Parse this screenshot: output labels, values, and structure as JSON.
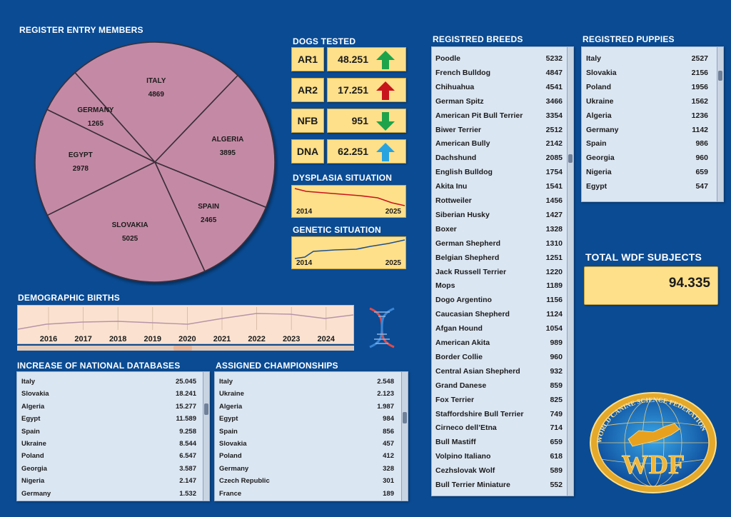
{
  "register_entry": {
    "title": "REGISTER ENTRY MEMBERS",
    "slices": [
      {
        "country": "ITALY",
        "value": "4869"
      },
      {
        "country": "ALGERIA",
        "value": "3895"
      },
      {
        "country": "SPAIN",
        "value": "2465"
      },
      {
        "country": "SLOVAKIA",
        "value": "5025"
      },
      {
        "country": "EGYPT",
        "value": "2978"
      },
      {
        "country": "GERMANY",
        "value": "1265"
      }
    ],
    "color": "#c48aa5"
  },
  "dogs_tested": {
    "title": "DOGS TESTED",
    "items": [
      {
        "label": "AR1",
        "value": "48.251",
        "trend": "up",
        "arrow_color": "#1fa34a",
        "icon": "arrow-up-green"
      },
      {
        "label": "AR2",
        "value": "17.251",
        "trend": "up",
        "arrow_color": "#c8141c",
        "icon": "arrow-up-red"
      },
      {
        "label": "NFB",
        "value": "951",
        "trend": "down",
        "arrow_color": "#1fa34a",
        "icon": "arrow-down-green"
      },
      {
        "label": "DNA",
        "value": "62.251",
        "trend": "up",
        "arrow_color": "#29a3e0",
        "icon": "arrow-up-blue"
      }
    ]
  },
  "dysplasia": {
    "title": "DYSPLASIA SITUATION",
    "year_start": "2014",
    "year_end": "2025",
    "line_color": "#c8141c",
    "trend": "decreasing"
  },
  "genetic": {
    "title": "GENETIC SITUATION",
    "year_start": "2014",
    "year_end": "2025",
    "line_color": "#1f4f8f",
    "trend": "increasing"
  },
  "breeds": {
    "title": "REGISTRED BREEDS",
    "rows": [
      {
        "name": "Poodle",
        "value": "5232"
      },
      {
        "name": "French Bulldog",
        "value": "4847"
      },
      {
        "name": "Chihuahua",
        "value": "4541"
      },
      {
        "name": "German Spitz",
        "value": "3466"
      },
      {
        "name": "American Pit Bull Terrier",
        "value": "3354"
      },
      {
        "name": "Biwer Terrier",
        "value": "2512"
      },
      {
        "name": "American Bully",
        "value": "2142"
      },
      {
        "name": "Dachshund",
        "value": "2085"
      },
      {
        "name": "English Bulldog",
        "value": "1754"
      },
      {
        "name": "Akita Inu",
        "value": "1541"
      },
      {
        "name": "Rottweiler",
        "value": "1456"
      },
      {
        "name": "Siberian Husky",
        "value": "1427"
      },
      {
        "name": "Boxer",
        "value": "1328"
      },
      {
        "name": "German Shepherd",
        "value": "1310"
      },
      {
        "name": "Belgian Shepherd",
        "value": "1251"
      },
      {
        "name": "Jack Russell Terrier",
        "value": "1220"
      },
      {
        "name": "Mops",
        "value": "1189"
      },
      {
        "name": "Dogo Argentino",
        "value": "1156"
      },
      {
        "name": "Caucasian Shepherd",
        "value": "1124"
      },
      {
        "name": "Afgan Hound",
        "value": "1054"
      },
      {
        "name": "American Akita",
        "value": "989"
      },
      {
        "name": "Border Collie",
        "value": "960"
      },
      {
        "name": "Central Asian Shepherd",
        "value": "932"
      },
      {
        "name": "Grand Danese",
        "value": "859"
      },
      {
        "name": "Fox Terrier",
        "value": "825"
      },
      {
        "name": "Staffordshire Bull Terrier",
        "value": "749"
      },
      {
        "name": "Cirneco dell’Etna",
        "value": "714"
      },
      {
        "name": "Bull Mastiff",
        "value": "659"
      },
      {
        "name": "Volpino Italiano",
        "value": "618"
      },
      {
        "name": "Cezhslovak Wolf",
        "value": "589"
      },
      {
        "name": "Bull Terrier Miniature",
        "value": "552"
      }
    ]
  },
  "puppies": {
    "title": "REGISTRED PUPPIES",
    "rows": [
      {
        "name": "Italy",
        "value": "2527"
      },
      {
        "name": "Slovakia",
        "value": "2156"
      },
      {
        "name": "Poland",
        "value": "1956"
      },
      {
        "name": "Ukraine",
        "value": "1562"
      },
      {
        "name": "Algeria",
        "value": "1236"
      },
      {
        "name": "Germany",
        "value": "1142"
      },
      {
        "name": "Spain",
        "value": "986"
      },
      {
        "name": "Georgia",
        "value": "960"
      },
      {
        "name": "Nigeria",
        "value": "659"
      },
      {
        "name": "Egypt",
        "value": "547"
      }
    ]
  },
  "total": {
    "title": "TOTAL WDF SUBJECTS",
    "value": "94.335"
  },
  "births": {
    "title": "DEMOGRAPHIC BIRTHS",
    "years": [
      "2016",
      "2017",
      "2018",
      "2019",
      "2020",
      "2021",
      "2022",
      "2023",
      "2024"
    ]
  },
  "national_db": {
    "title": "INCREASE OF NATIONAL DATABASES",
    "rows": [
      {
        "name": "Italy",
        "value": "25.045"
      },
      {
        "name": "Slovakia",
        "value": "18.241"
      },
      {
        "name": "Algeria",
        "value": "15.277"
      },
      {
        "name": "Egypt",
        "value": "11.589"
      },
      {
        "name": "Spain",
        "value": "9.258"
      },
      {
        "name": "Ukraine",
        "value": "8.544"
      },
      {
        "name": "Poland",
        "value": "6.547"
      },
      {
        "name": "Georgia",
        "value": "3.587"
      },
      {
        "name": "Nigeria",
        "value": "2.147"
      },
      {
        "name": "Germany",
        "value": "1.532"
      }
    ]
  },
  "championships": {
    "title": "ASSIGNED CHAMPIONSHIPS",
    "rows": [
      {
        "name": "Italy",
        "value": "2.548"
      },
      {
        "name": "Ukraine",
        "value": "2.123"
      },
      {
        "name": "Algeria",
        "value": "1.987"
      },
      {
        "name": "Egypt",
        "value": "984"
      },
      {
        "name": "Spain",
        "value": "856"
      },
      {
        "name": "Slovakia",
        "value": "457"
      },
      {
        "name": "Poland",
        "value": "412"
      },
      {
        "name": "Germany",
        "value": "328"
      },
      {
        "name": "Czech Republic",
        "value": "301"
      },
      {
        "name": "France",
        "value": "189"
      }
    ]
  },
  "logo": {
    "text_ring": "WORLD CANINE SCIENCE FEDERATION",
    "text_main": "WDF",
    "icon": "globe-dog-logo"
  },
  "dna_icon": "dna-helix-icon"
}
